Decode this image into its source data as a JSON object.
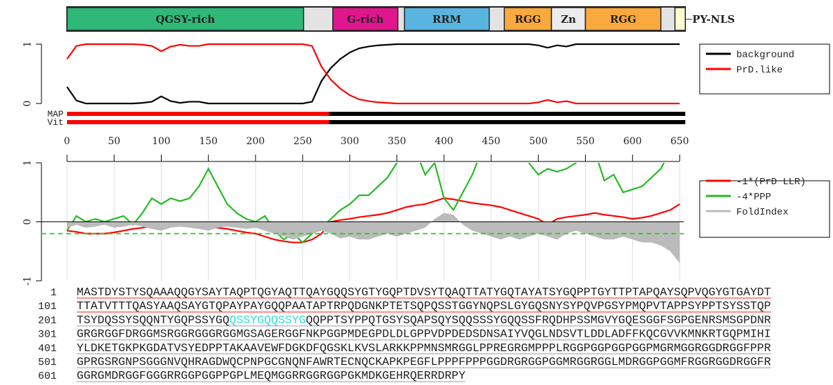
{
  "domains": [
    {
      "label": "QGSY-rich",
      "start": 0,
      "end": 251,
      "color": "#2fb878"
    },
    {
      "label": "G-rich",
      "start": 282,
      "end": 351,
      "color": "#e0168f"
    },
    {
      "label": "RRM",
      "start": 358,
      "end": 448,
      "color": "#5ab4e0"
    },
    {
      "label": "RGG",
      "start": 464,
      "end": 514,
      "color": "#f9a93d"
    },
    {
      "label": "Zn",
      "start": 514,
      "end": 550,
      "color": "#ececec"
    },
    {
      "label": "RGG",
      "start": 550,
      "end": 630,
      "color": "#f9a93d"
    },
    {
      "label": "PY-NLS",
      "start": 645,
      "end": 656,
      "color": "#fffbd0"
    }
  ],
  "length": 656,
  "tracks": [
    {
      "label": "MAP",
      "boundary": 278
    },
    {
      "label": "Vit",
      "boundary": 278
    }
  ],
  "chart_data": [
    {
      "type": "line",
      "xlim": [
        0,
        650
      ],
      "ylim": [
        0,
        1
      ],
      "yticks": [
        0,
        1
      ],
      "x": [
        0,
        10,
        20,
        30,
        40,
        50,
        60,
        70,
        80,
        90,
        100,
        110,
        120,
        130,
        140,
        150,
        160,
        170,
        180,
        190,
        200,
        210,
        220,
        230,
        240,
        250,
        260,
        270,
        280,
        290,
        300,
        310,
        320,
        330,
        340,
        350,
        360,
        370,
        380,
        390,
        400,
        410,
        420,
        430,
        440,
        450,
        460,
        470,
        480,
        490,
        500,
        510,
        520,
        530,
        540,
        550,
        560,
        570,
        580,
        590,
        600,
        610,
        620,
        630,
        640,
        650
      ],
      "series": [
        {
          "name": "background",
          "color": "#000000",
          "values": [
            0.28,
            0.05,
            0,
            0,
            0,
            0,
            0,
            0,
            0.01,
            0.03,
            0.12,
            0.04,
            0.01,
            0.03,
            0.03,
            0,
            0,
            0,
            0,
            0,
            0,
            0,
            0,
            0,
            0,
            0,
            0.03,
            0.38,
            0.6,
            0.75,
            0.86,
            0.93,
            0.96,
            0.98,
            0.99,
            1,
            1,
            1,
            1,
            1,
            1,
            1,
            1,
            1,
            1,
            1,
            1,
            1,
            1,
            1,
            0.98,
            0.94,
            0.98,
            0.96,
            1,
            1,
            1,
            1,
            1,
            1,
            1,
            1,
            1,
            1,
            1,
            1
          ]
        },
        {
          "name": "PrD.like",
          "color": "#ff0000",
          "values": [
            0.75,
            0.97,
            1,
            1,
            1,
            1,
            1,
            1,
            0.99,
            0.97,
            0.88,
            0.96,
            0.99,
            0.97,
            0.97,
            1,
            1,
            1,
            1,
            1,
            1,
            1,
            1,
            1,
            1,
            1,
            0.97,
            0.62,
            0.4,
            0.25,
            0.14,
            0.07,
            0.04,
            0.02,
            0.01,
            0,
            0,
            0,
            0,
            0,
            0,
            0,
            0,
            0,
            0,
            0,
            0,
            0,
            0,
            0,
            0.02,
            0.06,
            0.02,
            0.04,
            0,
            0,
            0,
            0,
            0,
            0,
            0,
            0,
            0,
            0,
            0,
            0
          ]
        }
      ]
    },
    {
      "type": "line",
      "xlim": [
        0,
        650
      ],
      "xticks": [
        0,
        50,
        100,
        150,
        200,
        250,
        300,
        350,
        400,
        450,
        500,
        550,
        600,
        650
      ],
      "ylim": [
        -1,
        1
      ],
      "yticks": [
        -1,
        0,
        1
      ],
      "grid": true,
      "threshold": -0.2,
      "threshold_color": "#22cc22",
      "x": [
        0,
        10,
        20,
        30,
        40,
        50,
        60,
        70,
        80,
        90,
        100,
        110,
        120,
        130,
        140,
        150,
        160,
        170,
        180,
        190,
        200,
        210,
        220,
        230,
        240,
        250,
        260,
        270,
        280,
        290,
        300,
        310,
        320,
        330,
        340,
        350,
        360,
        370,
        380,
        390,
        400,
        410,
        420,
        430,
        440,
        450,
        460,
        470,
        480,
        490,
        500,
        510,
        520,
        530,
        540,
        550,
        560,
        570,
        580,
        590,
        600,
        610,
        620,
        630,
        640,
        650
      ],
      "series": [
        {
          "name": "-1*(PrD LLR)",
          "color": "#ff0000",
          "values": [
            -0.15,
            -0.17,
            -0.2,
            -0.2,
            -0.2,
            -0.18,
            -0.15,
            -0.12,
            -0.1,
            -0.07,
            -0.05,
            -0.05,
            -0.05,
            -0.08,
            -0.1,
            -0.1,
            -0.1,
            -0.12,
            -0.15,
            -0.18,
            -0.2,
            -0.25,
            -0.3,
            -0.33,
            -0.35,
            -0.35,
            -0.3,
            -0.2,
            0,
            0.03,
            0.05,
            0.08,
            0.1,
            0.12,
            0.15,
            0.2,
            0.25,
            0.28,
            0.3,
            0.35,
            0.4,
            0.38,
            0.35,
            0.32,
            0.3,
            0.28,
            0.25,
            0.2,
            0.15,
            0.1,
            0.05,
            -0.05,
            0.05,
            0.08,
            0.1,
            0.12,
            0.15,
            0.12,
            0.1,
            0.08,
            0.05,
            0.07,
            0.1,
            0.15,
            0.2,
            0.3
          ]
        },
        {
          "name": "-4*PPP",
          "color": "#22bb22",
          "values": [
            -0.15,
            0.1,
            0,
            0.05,
            0,
            0.05,
            0.1,
            -0.05,
            0.15,
            0.4,
            0.3,
            0.4,
            0.35,
            0.4,
            0.6,
            0.9,
            0.6,
            0.3,
            0.15,
            0.05,
            0,
            0.1,
            -0.15,
            -0.3,
            -0.2,
            -0.35,
            -0.2,
            -0.1,
            0.05,
            0.2,
            0.3,
            0.45,
            0.45,
            0.6,
            0.75,
            1,
            1.2,
            1.2,
            0.8,
            1,
            0.4,
            0.2,
            0.5,
            0.8,
            1.2,
            1.2,
            1.2,
            1.2,
            1.2,
            1,
            0.8,
            0.9,
            0.85,
            0.9,
            1,
            1.2,
            1.2,
            0.7,
            0.8,
            0.5,
            0.55,
            0.6,
            0.75,
            0.9,
            1.2,
            1.2
          ]
        },
        {
          "name": "FoldIndex",
          "color": "#bbbbbb",
          "area": true,
          "values": [
            -0.1,
            -0.05,
            -0.1,
            -0.08,
            -0.05,
            -0.1,
            -0.08,
            -0.05,
            -0.08,
            -0.12,
            -0.15,
            -0.1,
            -0.08,
            -0.1,
            -0.12,
            -0.15,
            -0.1,
            -0.08,
            -0.1,
            -0.12,
            -0.1,
            -0.15,
            -0.2,
            -0.25,
            -0.3,
            -0.25,
            -0.2,
            -0.15,
            -0.2,
            -0.28,
            -0.25,
            -0.3,
            -0.3,
            -0.25,
            -0.2,
            -0.25,
            -0.2,
            -0.15,
            -0.1,
            0.05,
            0.15,
            0.12,
            -0.05,
            -0.15,
            -0.2,
            -0.25,
            -0.3,
            -0.25,
            -0.3,
            -0.25,
            -0.2,
            -0.25,
            -0.3,
            -0.2,
            -0.15,
            -0.2,
            -0.25,
            -0.3,
            -0.3,
            -0.25,
            -0.3,
            -0.35,
            -0.35,
            -0.4,
            -0.5,
            -0.7
          ]
        }
      ]
    }
  ],
  "sequence": [
    {
      "number": 1,
      "underline": "#ff6666",
      "parts": [
        "MASTDYSTYSQAAAQQGYSAYTAQPTQGYAQTTQAYGQQSYGTYGQPTDVSYTQAQTTATYGQTAYATSYGQPPTGYTTPTAPQAYSQPVQGYGTGAYDT"
      ]
    },
    {
      "number": 101,
      "underline": "#ff6666",
      "parts": [
        "TTATVTTTQASYAAQSAYGTQPAYPAYGQQPAATAPTRPQDGNKPTETSQPQSSTGGYNQPSLGYGQSNYSYPQVPGSYPMQPVTAPPSYPPTSYSSTQP"
      ]
    },
    {
      "number": 201,
      "underline": "#bbbbbb",
      "parts": [
        "TSYDQSSYSQQNTYGQPSSYGQ",
        "QSSYGQQSSYG",
        "QQPPTSYPPQTGSYSQAPSQYSQQSSSYGQQSSFRQDHPSSMGVYGQESGGFSGPGENRSMSGPDNR"
      ],
      "highlight": 1,
      "highlight_color": "#33dddd"
    },
    {
      "number": 301,
      "underline": "#bbbbbb",
      "parts": [
        "GRGRGGFDRGGMSRGGRGGGRGGMGSAGERGGFNKPGGPMDEGPDLDLGPPVDPDEDSDNSAIYVQGLNDSVTLDDLADFFKQCGVVKMNKRTGQPMIHI"
      ]
    },
    {
      "number": 401,
      "underline": "#bbbbbb",
      "parts": [
        "YLDKETGKPKGDATVSYEDPPTAKAAVEWFDGKDFQGSKLKVSLARKKPPMNSMRGGLPPREGRGMPPPLRGGPGGPGGPGGPMGRMGGRGGDRGGFPPR"
      ]
    },
    {
      "number": 501,
      "underline": "#bbbbbb",
      "parts": [
        "GPRGSRGNPSGGGNVQHRAGDWQCPNPGCGNQNFAWRTECNQCKAPKPEGFLPPPFPPPGGDRGRGGPGGMRGGRGGLMDRGGPGGMFRGGRGGDRGGFR"
      ]
    },
    {
      "number": 601,
      "underline": "#bbbbbb",
      "parts": [
        "GGRGMDRGGFGGGRRGGPGGPPGPLMEQMGGRRGGRGGPGKMDKGEHRQERRDRPY"
      ]
    }
  ]
}
